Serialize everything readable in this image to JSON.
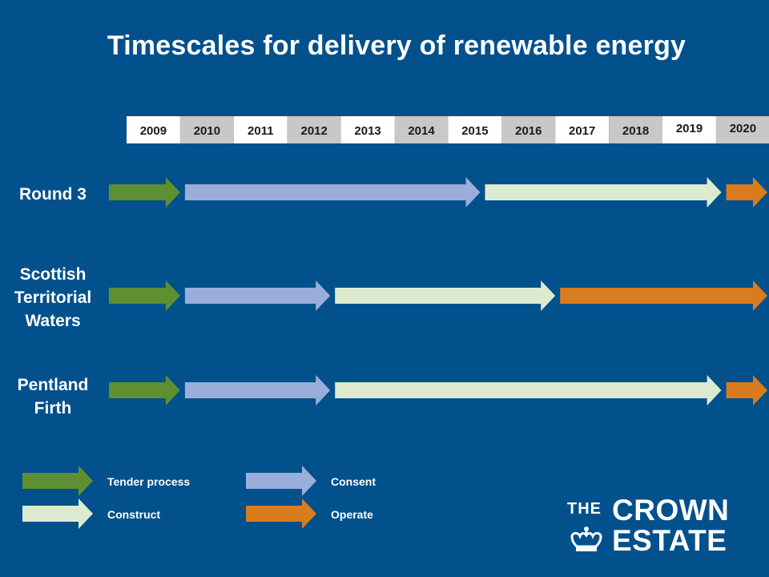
{
  "chart_data": {
    "type": "gantt",
    "title": "Timescales for delivery of renewable energy",
    "years": [
      "2009",
      "2010",
      "2011",
      "2012",
      "2013",
      "2014",
      "2015",
      "2016",
      "2017",
      "2018",
      "2019",
      "2020"
    ],
    "phases": [
      {
        "key": "tender",
        "name": "Tender process",
        "color": "#5e8f32"
      },
      {
        "key": "consent",
        "name": "Consent",
        "color": "#9aaedb"
      },
      {
        "key": "construct",
        "name": "Construct",
        "color": "#dcebd0"
      },
      {
        "key": "operate",
        "name": "Operate",
        "color": "#d97c1e"
      }
    ],
    "rows": [
      {
        "label_lines": [
          "Round 3"
        ],
        "segments": [
          {
            "phase": "tender",
            "start": 2009.0,
            "end": 2010.0
          },
          {
            "phase": "consent",
            "start": 2010.0,
            "end": 2015.6
          },
          {
            "phase": "construct",
            "start": 2015.6,
            "end": 2020.1
          },
          {
            "phase": "operate",
            "start": 2020.1,
            "end": 2021.0
          }
        ]
      },
      {
        "label_lines": [
          "Scottish",
          "Territorial",
          "Waters"
        ],
        "segments": [
          {
            "phase": "tender",
            "start": 2009.0,
            "end": 2010.0
          },
          {
            "phase": "consent",
            "start": 2010.0,
            "end": 2012.8
          },
          {
            "phase": "construct",
            "start": 2012.8,
            "end": 2017.0
          },
          {
            "phase": "operate",
            "start": 2017.0,
            "end": 2021.0
          }
        ]
      },
      {
        "label_lines": [
          "Pentland",
          "Firth"
        ],
        "segments": [
          {
            "phase": "tender",
            "start": 2009.0,
            "end": 2010.0
          },
          {
            "phase": "consent",
            "start": 2010.0,
            "end": 2012.8
          },
          {
            "phase": "construct",
            "start": 2012.8,
            "end": 2020.1
          },
          {
            "phase": "operate",
            "start": 2020.1,
            "end": 2021.0
          }
        ]
      }
    ],
    "legend_position": "bottom-left"
  },
  "logo": {
    "the": "THE",
    "crown": "CROWN",
    "estate": "ESTATE"
  }
}
